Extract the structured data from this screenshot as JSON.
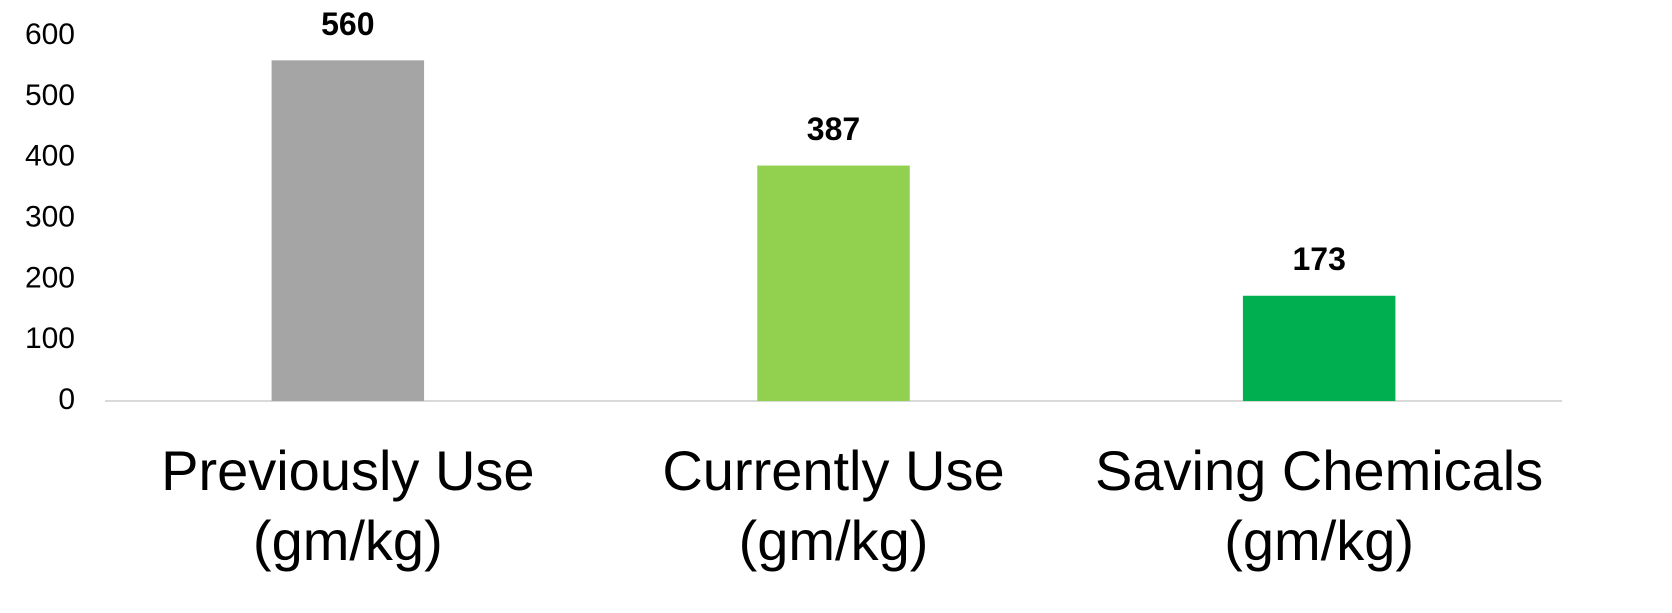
{
  "chart_data": {
    "type": "bar",
    "categories": [
      "Previously Use (gm/kg)",
      "Currently Use (gm/kg)",
      "Saving Chemicals (gm/kg)"
    ],
    "values": [
      560,
      387,
      173
    ],
    "colors": [
      "#a5a5a5",
      "#92d050",
      "#00b050"
    ],
    "ylim": [
      0,
      600
    ],
    "yticks": [
      0,
      100,
      200,
      300,
      400,
      500,
      600
    ],
    "grid": false
  }
}
